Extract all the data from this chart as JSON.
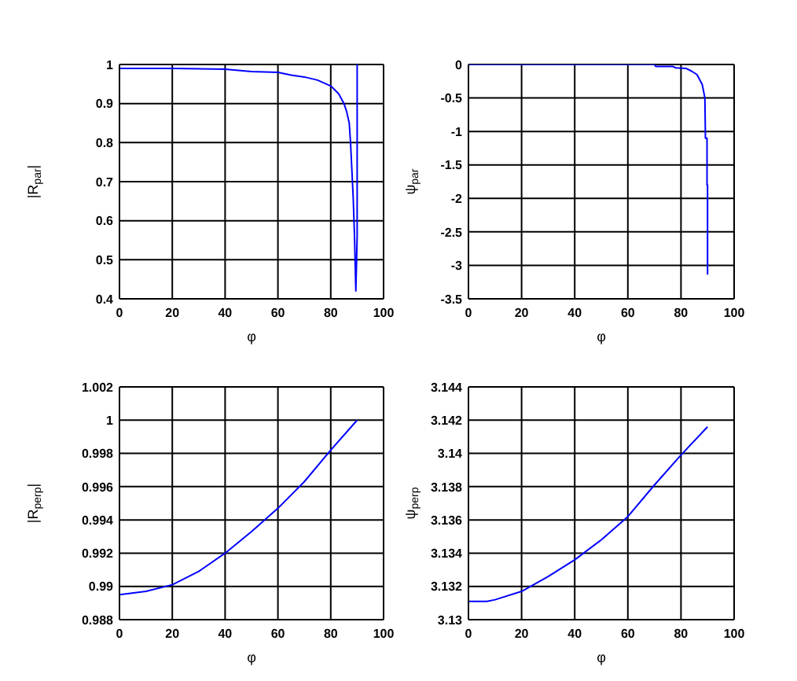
{
  "chart_data": [
    {
      "type": "line",
      "xlabel": "φ",
      "ylabel": "|R$_{par}$|",
      "xlim": [
        0,
        100
      ],
      "xticks": [
        0,
        20,
        40,
        60,
        80,
        100
      ],
      "ylim": [
        0.4,
        1
      ],
      "yticks": [
        0.4,
        0.5,
        0.6,
        0.7,
        0.8,
        0.9,
        1
      ],
      "grid": true,
      "series": [
        {
          "color": "#0000ff",
          "x": [
            0,
            20,
            40,
            50,
            60,
            65,
            70,
            75,
            80,
            83,
            85,
            86,
            87,
            87.5,
            88,
            88.5,
            89,
            89.5,
            90,
            90
          ],
          "values": [
            0.99,
            0.99,
            0.988,
            0.982,
            0.98,
            0.973,
            0.968,
            0.96,
            0.945,
            0.925,
            0.9,
            0.88,
            0.85,
            0.8,
            0.73,
            0.66,
            0.56,
            0.42,
            0.56,
            1
          ]
        }
      ]
    },
    {
      "type": "line",
      "xlabel": "φ",
      "ylabel": "ψ$_{par}$",
      "xlim": [
        0,
        100
      ],
      "xticks": [
        0,
        20,
        40,
        60,
        80,
        100
      ],
      "ylim": [
        -3.5,
        0
      ],
      "yticks": [
        -3.5,
        -3,
        -2.5,
        -2,
        -1.5,
        -1,
        -0.5,
        0
      ],
      "grid": true,
      "series": [
        {
          "color": "#0000ff",
          "x": [
            0,
            70,
            70.5,
            77,
            78,
            82,
            84,
            86,
            88,
            89,
            89.2,
            89.8,
            89.8,
            90,
            90
          ],
          "values": [
            0,
            0,
            -0.03,
            -0.03,
            -0.05,
            -0.06,
            -0.1,
            -0.15,
            -0.3,
            -0.5,
            -1.1,
            -1.1,
            -1.8,
            -1.8,
            -3.14
          ]
        }
      ]
    },
    {
      "type": "line",
      "xlabel": "φ",
      "ylabel": "|R$_{perp}$|",
      "xlim": [
        0,
        100
      ],
      "xticks": [
        0,
        20,
        40,
        60,
        80,
        100
      ],
      "ylim": [
        0.988,
        1.002
      ],
      "yticks": [
        0.988,
        0.99,
        0.992,
        0.994,
        0.996,
        0.998,
        1,
        1.002
      ],
      "grid": true,
      "series": [
        {
          "color": "#0000ff",
          "x": [
            0,
            10,
            20,
            30,
            40,
            50,
            60,
            70,
            80,
            90
          ],
          "values": [
            0.9895,
            0.9897,
            0.9901,
            0.9909,
            0.992,
            0.9933,
            0.9947,
            0.9963,
            0.9982,
            1
          ]
        }
      ]
    },
    {
      "type": "line",
      "xlabel": "φ",
      "ylabel": "ψ$_{perp}$",
      "xlim": [
        0,
        100
      ],
      "xticks": [
        0,
        20,
        40,
        60,
        80,
        100
      ],
      "ylim": [
        3.13,
        3.144
      ],
      "yticks": [
        3.13,
        3.132,
        3.134,
        3.136,
        3.138,
        3.14,
        3.142,
        3.144
      ],
      "grid": true,
      "series": [
        {
          "color": "#0000ff",
          "x": [
            0,
            7,
            10,
            20,
            30,
            40,
            50,
            60,
            70,
            80,
            90
          ],
          "values": [
            3.1311,
            3.1311,
            3.1312,
            3.1317,
            3.1326,
            3.1336,
            3.1348,
            3.1362,
            3.1381,
            3.1399,
            3.1416
          ]
        }
      ]
    }
  ]
}
